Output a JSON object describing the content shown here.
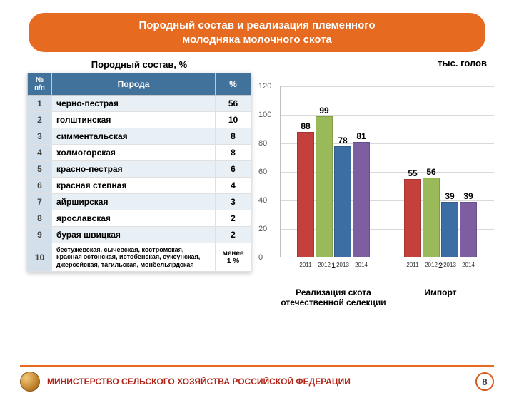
{
  "colors": {
    "title_bg": "#e66a1f",
    "th_bg": "#41729c",
    "row_odd": "#e9f0f5",
    "row_even": "#ffffff",
    "idx_bg": "#d3e0eb",
    "accent": "#b02418",
    "bar_colors": [
      "#c4403a",
      "#9ab958",
      "#3d6ea3",
      "#7d5ea0"
    ]
  },
  "title_l1": "Породный состав и реализация племенного",
  "title_l2": "молодняка молочного скота",
  "table": {
    "subtitle": "Породный состав, %",
    "h_idx": "№ п/п",
    "h_breed": "Порода",
    "h_pct": "%",
    "rows": [
      {
        "i": "1",
        "breed": "черно-пестрая",
        "pct": "56"
      },
      {
        "i": "2",
        "breed": "голштинская",
        "pct": "10"
      },
      {
        "i": "3",
        "breed": "симментальская",
        "pct": "8"
      },
      {
        "i": "4",
        "breed": "холмогорская",
        "pct": "8"
      },
      {
        "i": "5",
        "breed": "красно-пестрая",
        "pct": "6"
      },
      {
        "i": "6",
        "breed": "красная степная",
        "pct": "4"
      },
      {
        "i": "7",
        "breed": "айрширская",
        "pct": "3"
      },
      {
        "i": "8",
        "breed": "ярославская",
        "pct": "2"
      },
      {
        "i": "9",
        "breed": "бурая швицкая",
        "pct": "2"
      },
      {
        "i": "10",
        "breed": "бестужевская, сычевская, костромская, красная эстонская, истобенская, суксунская, джерсейская, тагильская, монбельярдская",
        "pct": "менее 1 %"
      }
    ]
  },
  "chart": {
    "unit": "тыс. голов",
    "ymin": 0,
    "ymax": 120,
    "ystep": 20,
    "years": [
      "2011",
      "2012",
      "2013",
      "2014"
    ],
    "groups": [
      {
        "idx": "1",
        "label": "Реализация скота отечественной селекции",
        "values": [
          88,
          99,
          78,
          81
        ]
      },
      {
        "idx": "2",
        "label": "Импорт",
        "values": [
          55,
          56,
          39,
          39
        ]
      }
    ]
  },
  "footer": {
    "ministry": "МИНИСТЕРСТВО СЕЛЬСКОГО ХОЗЯЙСТВА РОССИЙСКОЙ ФЕДЕРАЦИИ",
    "page": "8"
  }
}
